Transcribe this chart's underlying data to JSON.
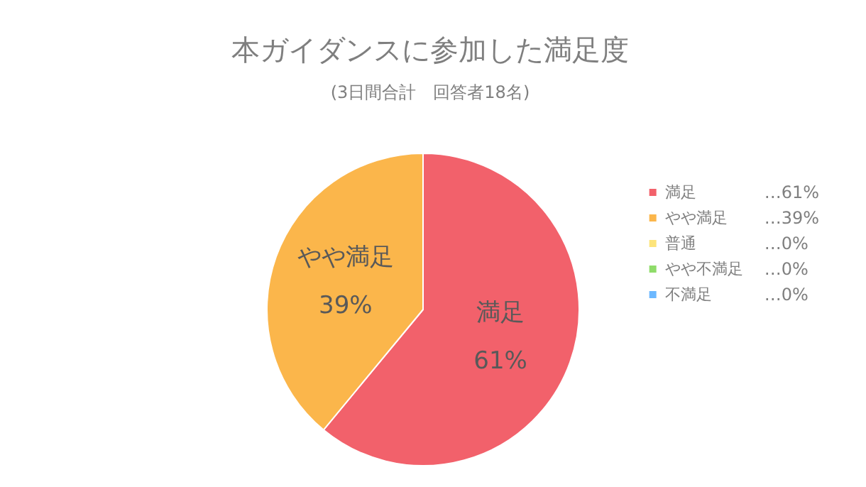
{
  "chart_data": {
    "type": "pie",
    "title": "本ガイダンスに参加した満足度",
    "subtitle": "(3日間合計　回答者18名)",
    "categories": [
      "満足",
      "やや満足",
      "普通",
      "やや不満足",
      "不満足"
    ],
    "values": [
      61,
      39,
      0,
      0,
      0
    ],
    "value_labels": [
      "61%",
      "39%",
      null,
      null,
      null
    ],
    "annotations": [
      "…61%",
      "…39%",
      "…0%",
      "…0%",
      "…0%"
    ],
    "colors": [
      "#f2616b",
      "#fbb64b",
      "#fde47a",
      "#8fdc6a",
      "#6cb8ff"
    ],
    "legend": "right"
  }
}
